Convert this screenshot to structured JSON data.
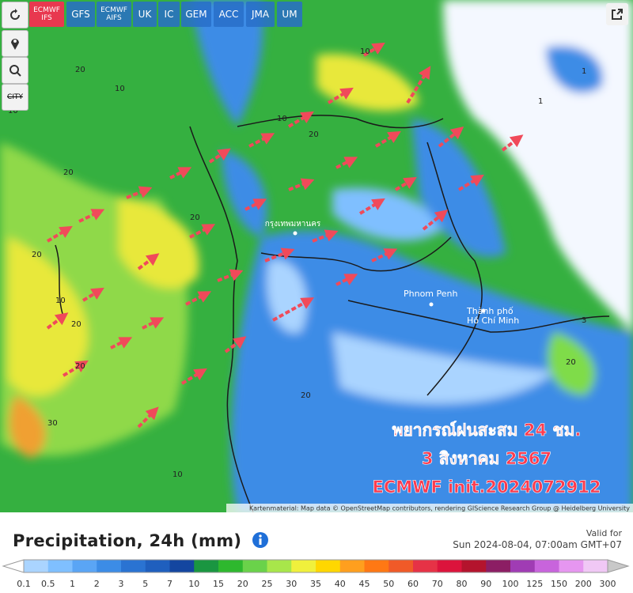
{
  "models": [
    {
      "label": "ECMWF IFS",
      "selected": true,
      "small": true
    },
    {
      "label": "GFS",
      "selected": false,
      "small": false
    },
    {
      "label": "ECMWF AIFS",
      "selected": false,
      "small": true
    },
    {
      "label": "UK",
      "selected": false,
      "small": false
    },
    {
      "label": "IC",
      "selected": false,
      "small": false
    },
    {
      "label": "GEM",
      "selected": false,
      "small": false
    },
    {
      "label": "ACC",
      "selected": false,
      "small": false
    },
    {
      "label": "JMA",
      "selected": false,
      "small": false
    },
    {
      "label": "UM",
      "selected": false,
      "small": false
    }
  ],
  "tools": {
    "city": "CITY"
  },
  "map": {
    "places": [
      "กรุงเทพมหานคร",
      "Phnom Penh",
      "Thành phố",
      "Hồ Chí Minh"
    ],
    "contour_labels": [
      "20",
      "20",
      "20",
      "20",
      "20",
      "10",
      "10",
      "20",
      "10",
      "20",
      "20",
      "30",
      "10",
      "10",
      "20",
      "10",
      "1",
      "1",
      "3"
    ],
    "annotation": [
      "พยากรณ์ฝนสะสม 24 ชม.",
      "3 สิงหาคม 2567",
      "ECMWF init.2024072912"
    ],
    "attribution": "Kartenmaterial: Map data © OpenStreetMap contributors, rendering GIScience Research Group @ Heidelberg University"
  },
  "legend": {
    "title": "Precipitation, 24h (mm)",
    "valid_label": "Valid for",
    "valid_date": "Sun 2024-08-04, 07:00am GMT+07",
    "ticks": [
      "0.1",
      "0.5",
      "1",
      "2",
      "3",
      "5",
      "7",
      "10",
      "15",
      "20",
      "25",
      "30",
      "35",
      "40",
      "45",
      "50",
      "60",
      "70",
      "80",
      "90",
      "100",
      "125",
      "150",
      "200",
      "300"
    ],
    "colors": [
      "#aad4ff",
      "#7fbfff",
      "#5aa5f5",
      "#3c8ce6",
      "#2a73d2",
      "#1f5fbe",
      "#1446a0",
      "#1a9641",
      "#2eb82e",
      "#6ad24a",
      "#a8e64a",
      "#f0f03c",
      "#ffd700",
      "#ff9f1e",
      "#ff7814",
      "#f05a28",
      "#e63246",
      "#dc143c",
      "#b4142d",
      "#8c1e64",
      "#a03cb4",
      "#c864dc",
      "#e696f0",
      "#f0c8f5"
    ]
  }
}
